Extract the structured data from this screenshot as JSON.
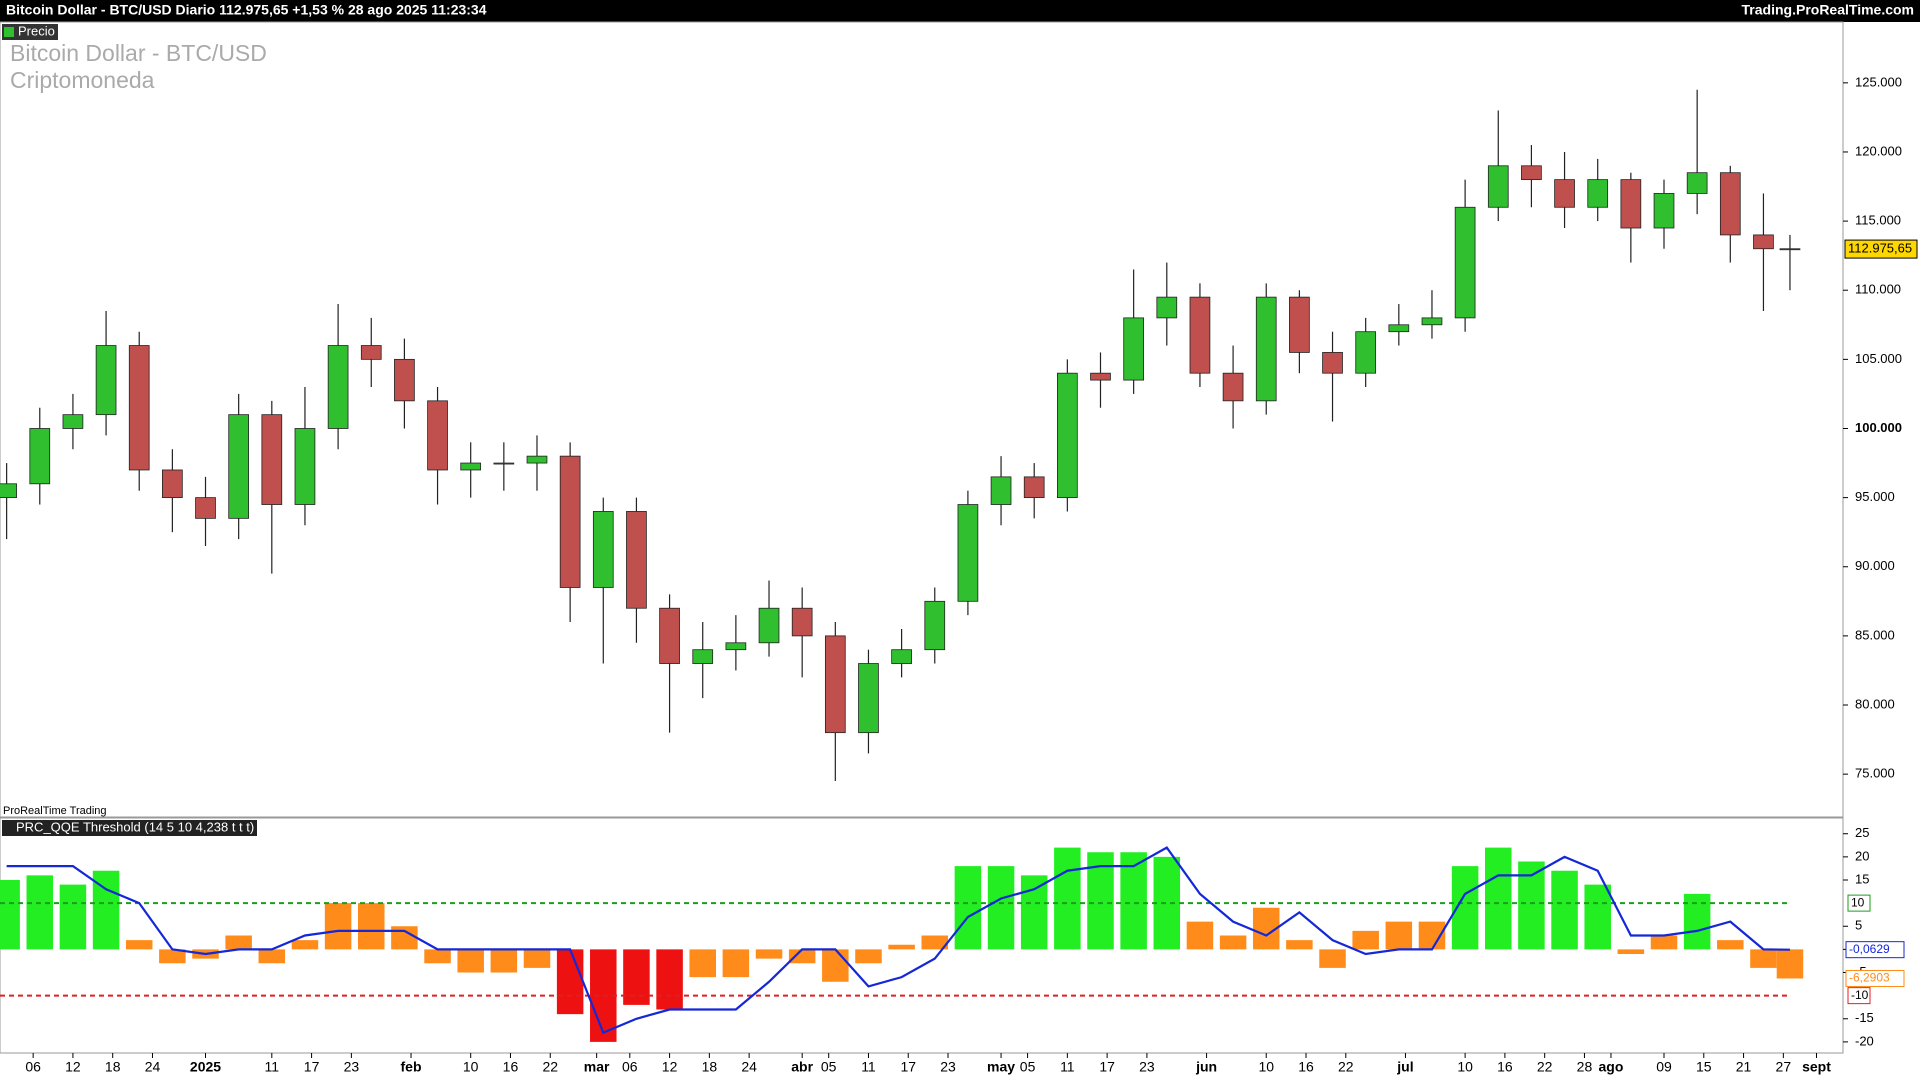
{
  "header": {
    "title": "Bitcoin Dollar - BTC/USD Diario 112.975,65 +1,53 % 28 ago 2025 11:23:34",
    "site": "Trading.ProRealTime.com"
  },
  "chart_data": [
    {
      "type": "candlestick",
      "tag": "Precio",
      "title": "Bitcoin Dollar - BTC/USD",
      "subtitle": "Criptomoneda",
      "footer": "ProRealTime Trading",
      "x": [
        -30,
        -25,
        -20,
        -15,
        -10,
        -5,
        0,
        5,
        10,
        15,
        20,
        25,
        30,
        35,
        40,
        45,
        50,
        55,
        60,
        65,
        70,
        75,
        80,
        85,
        90,
        95,
        100,
        105,
        110,
        115,
        120,
        125,
        130,
        135,
        140,
        145,
        150,
        155,
        160,
        165,
        170,
        175,
        180,
        185,
        190,
        195,
        200,
        205,
        210,
        215,
        220,
        225,
        230,
        235,
        239
      ],
      "open": [
        95000,
        96000,
        100000,
        101000,
        106000,
        97000,
        95000,
        93500,
        101000,
        94500,
        100000,
        106000,
        105000,
        102000,
        97000,
        97500,
        97500,
        98000,
        88500,
        94000,
        87000,
        83000,
        84000,
        84500,
        87000,
        85000,
        78000,
        83000,
        84000,
        87500,
        94500,
        96500,
        95000,
        104000,
        103500,
        108000,
        109500,
        104000,
        102000,
        109500,
        105500,
        104000,
        107000,
        107500,
        108000,
        116000,
        119000,
        118000,
        116000,
        118000,
        114500,
        117000,
        118500,
        114000,
        113000
      ],
      "high": [
        97500,
        101500,
        102500,
        108500,
        107000,
        98500,
        96500,
        102500,
        102000,
        103000,
        109000,
        108000,
        106500,
        103000,
        99000,
        99000,
        99500,
        99000,
        95000,
        95000,
        88000,
        86000,
        86500,
        89000,
        88500,
        86000,
        84000,
        85500,
        88500,
        95500,
        98000,
        97500,
        105000,
        105500,
        111500,
        112000,
        110500,
        106000,
        110500,
        110000,
        107000,
        108000,
        109000,
        110000,
        118000,
        123000,
        120500,
        120000,
        119500,
        118500,
        118000,
        124500,
        119000,
        117000,
        114000
      ],
      "low": [
        92000,
        94500,
        98500,
        99500,
        95500,
        92500,
        91500,
        92000,
        89500,
        93000,
        98500,
        103000,
        100000,
        94500,
        95000,
        95500,
        95500,
        86000,
        83000,
        84500,
        78000,
        80500,
        82500,
        83500,
        82000,
        74500,
        76500,
        82000,
        83000,
        86500,
        93000,
        93500,
        94000,
        101500,
        102500,
        106000,
        103000,
        100000,
        101000,
        104000,
        100500,
        103000,
        106000,
        106500,
        107000,
        115000,
        116000,
        114500,
        115000,
        112000,
        113000,
        115500,
        112000,
        108500,
        110000
      ],
      "close": [
        96000,
        100000,
        101000,
        106000,
        97000,
        95000,
        93500,
        101000,
        94500,
        100000,
        106000,
        105000,
        102000,
        97000,
        97500,
        97500,
        98000,
        88500,
        94000,
        87000,
        83000,
        84000,
        84500,
        87000,
        85000,
        78000,
        83000,
        84000,
        87500,
        94500,
        96500,
        95000,
        104000,
        103500,
        108000,
        109500,
        104000,
        102000,
        109500,
        105500,
        104000,
        107000,
        107500,
        108000,
        116000,
        119000,
        118000,
        116000,
        118000,
        114500,
        117000,
        118500,
        114000,
        113000,
        112975.65
      ],
      "last_label": "112.975,65",
      "up_color": "#2fbf2f",
      "down_color": "#c0504d",
      "xlim": [
        -31,
        247
      ],
      "ylim": [
        71900,
        129400
      ],
      "yticks": [
        {
          "value": 75000,
          "label": "75.000"
        },
        {
          "value": 80000,
          "label": "80.000"
        },
        {
          "value": 85000,
          "label": "85.000"
        },
        {
          "value": 90000,
          "label": "90.000"
        },
        {
          "value": 95000,
          "label": "95.000"
        },
        {
          "value": 100000,
          "label": "100.000"
        },
        {
          "value": 105000,
          "label": "105.000"
        },
        {
          "value": 110000,
          "label": "110.000"
        },
        {
          "value": 115000,
          "label": "115.000"
        },
        {
          "value": 120000,
          "label": "120.000"
        },
        {
          "value": 125000,
          "label": "125.000"
        }
      ]
    },
    {
      "type": "histogram-line",
      "title": "PRC_QQE Threshold (14 5 10 4,238 t t t)",
      "x": [
        -30,
        -25,
        -20,
        -15,
        -10,
        -5,
        0,
        5,
        10,
        15,
        20,
        25,
        30,
        35,
        40,
        45,
        50,
        55,
        60,
        65,
        70,
        75,
        80,
        85,
        90,
        95,
        100,
        105,
        110,
        115,
        120,
        125,
        130,
        135,
        140,
        145,
        150,
        155,
        160,
        165,
        170,
        175,
        180,
        185,
        190,
        195,
        200,
        205,
        210,
        215,
        220,
        225,
        230,
        235,
        239
      ],
      "histogram": {
        "values": [
          15,
          16,
          14,
          17,
          2,
          -3,
          -2,
          3,
          -3,
          2,
          10,
          10,
          5,
          -3,
          -5,
          -5,
          -4,
          -14,
          -20,
          -12,
          -13,
          -6,
          -6,
          -2,
          -3,
          -7,
          -3,
          1,
          3,
          18,
          18,
          16,
          22,
          21,
          21,
          20,
          6,
          3,
          9,
          2,
          -4,
          4,
          6,
          6,
          18,
          22,
          19,
          17,
          14,
          -1,
          3,
          12,
          2,
          -4,
          -6.2903
        ],
        "last_label": "-6,2903",
        "color": "#ff8c1a",
        "up_color": "#22ee22",
        "down_color": "#ee1111"
      },
      "line": {
        "values": [
          18,
          18,
          18,
          13,
          10,
          0,
          -1,
          0,
          0,
          3,
          4,
          4,
          4,
          0,
          0,
          0,
          0,
          0,
          -18,
          -15,
          -13,
          -13,
          -13,
          -7,
          0,
          0,
          -8,
          -6,
          -2,
          7,
          11,
          13,
          17,
          18,
          18,
          22,
          12,
          6,
          3,
          8,
          2,
          -1,
          0,
          0,
          12,
          16,
          16,
          20,
          17,
          3,
          3,
          4,
          6,
          0,
          -0.0629
        ],
        "last_label": "-0,0629",
        "color": "#1428d8"
      },
      "upper_threshold": 10,
      "lower_threshold": -10,
      "upper_color": "#1a9e1a",
      "lower_color": "#e02020",
      "xlim": [
        -31,
        247
      ],
      "ylim": [
        -22.4,
        28.4
      ],
      "yticks": [
        25,
        20,
        15,
        5,
        0,
        -5,
        -15,
        -20
      ],
      "xticks": [
        {
          "value": -26,
          "label": "06"
        },
        {
          "value": -20,
          "label": "12"
        },
        {
          "value": -14,
          "label": "18"
        },
        {
          "value": -8,
          "label": "24"
        },
        {
          "value": 0,
          "label": "2025"
        },
        {
          "value": 10,
          "label": "11"
        },
        {
          "value": 16,
          "label": "17"
        },
        {
          "value": 22,
          "label": "23"
        },
        {
          "value": 31,
          "label": "feb"
        },
        {
          "value": 40,
          "label": "10"
        },
        {
          "value": 46,
          "label": "16"
        },
        {
          "value": 52,
          "label": "22"
        },
        {
          "value": 59,
          "label": "mar"
        },
        {
          "value": 64,
          "label": "06"
        },
        {
          "value": 70,
          "label": "12"
        },
        {
          "value": 76,
          "label": "18"
        },
        {
          "value": 82,
          "label": "24"
        },
        {
          "value": 90,
          "label": "abr"
        },
        {
          "value": 94,
          "label": "05"
        },
        {
          "value": 100,
          "label": "11"
        },
        {
          "value": 106,
          "label": "17"
        },
        {
          "value": 112,
          "label": "23"
        },
        {
          "value": 120,
          "label": "may"
        },
        {
          "value": 124,
          "label": "05"
        },
        {
          "value": 130,
          "label": "11"
        },
        {
          "value": 136,
          "label": "17"
        },
        {
          "value": 142,
          "label": "23"
        },
        {
          "value": 151,
          "label": "jun"
        },
        {
          "value": 160,
          "label": "10"
        },
        {
          "value": 166,
          "label": "16"
        },
        {
          "value": 172,
          "label": "22"
        },
        {
          "value": 181,
          "label": "jul"
        },
        {
          "value": 190,
          "label": "10"
        },
        {
          "value": 196,
          "label": "16"
        },
        {
          "value": 202,
          "label": "22"
        },
        {
          "value": 208,
          "label": "28"
        },
        {
          "value": 212,
          "label": "ago"
        },
        {
          "value": 220,
          "label": "09"
        },
        {
          "value": 226,
          "label": "15"
        },
        {
          "value": 232,
          "label": "21"
        },
        {
          "value": 238,
          "label": "27"
        },
        {
          "value": 243,
          "label": "sept"
        }
      ]
    }
  ]
}
